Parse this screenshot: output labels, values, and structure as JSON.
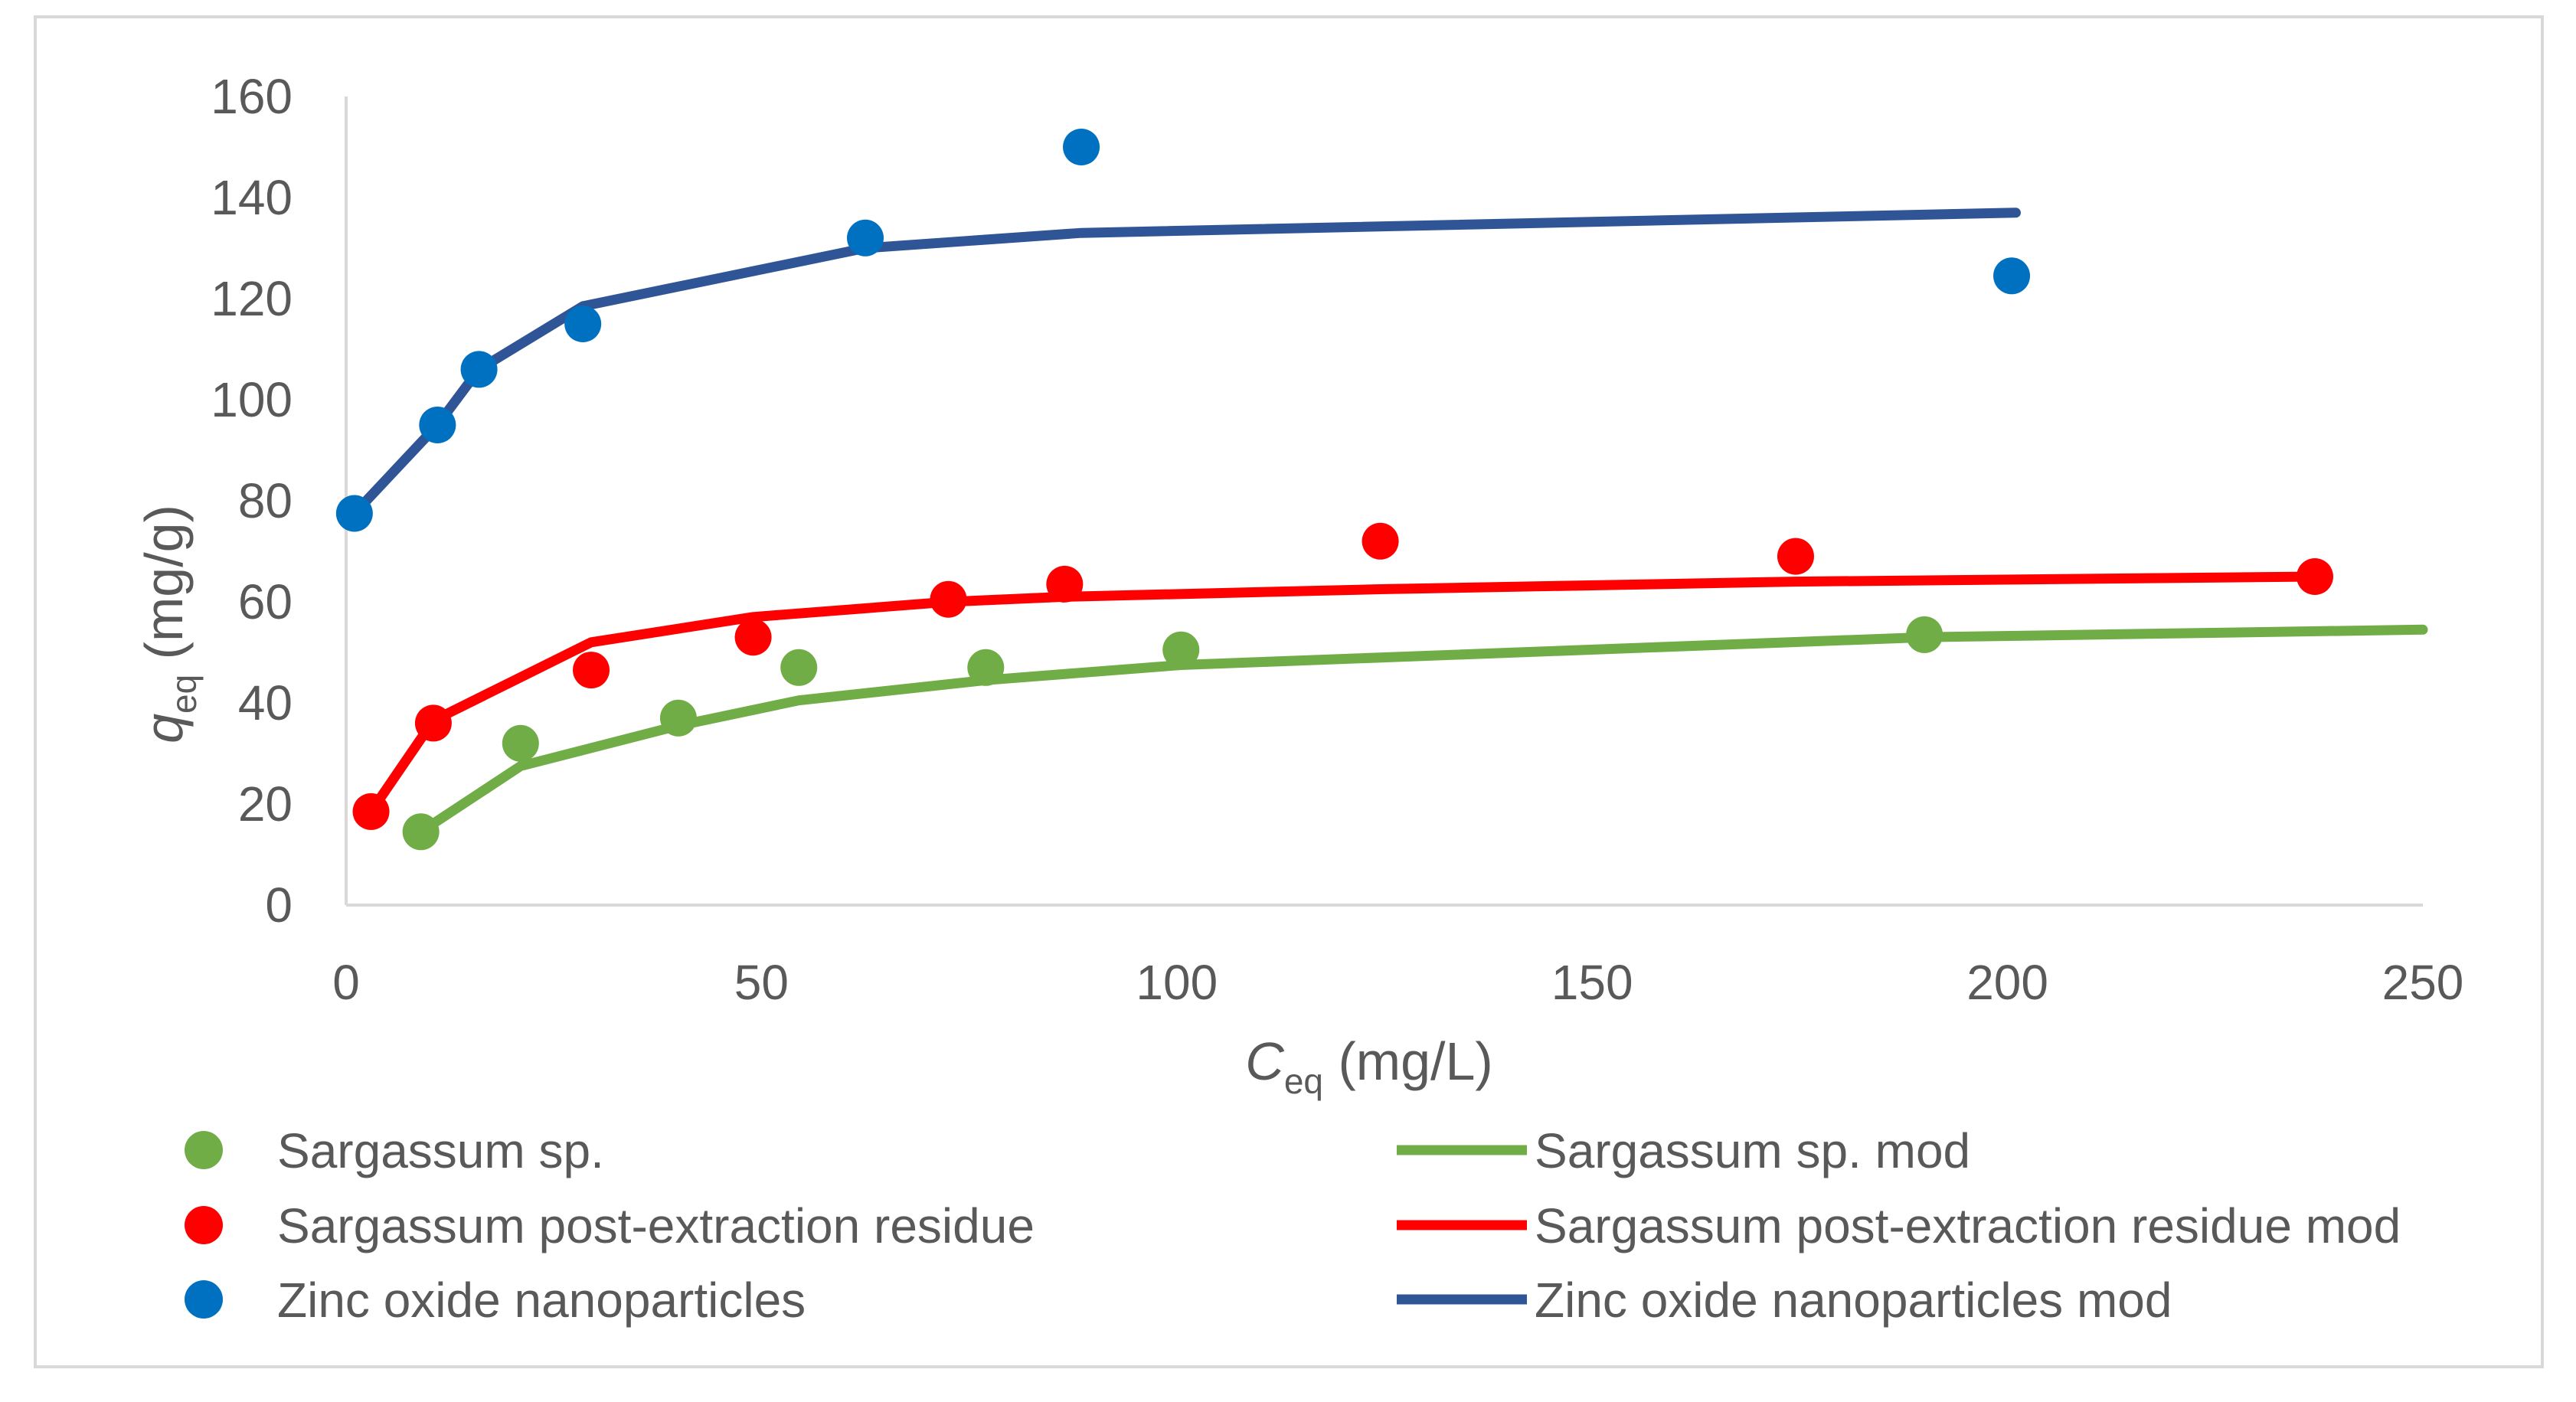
{
  "chart_data": {
    "type": "scatter",
    "title": "",
    "xlabel_main": "C",
    "xlabel_sub": "eq",
    "xlabel_unit": " (mg/L)",
    "ylabel_main": "q",
    "ylabel_sub": "eq",
    "ylabel_unit": " (mg/g)",
    "xlim": [
      0,
      250
    ],
    "ylim": [
      0,
      160
    ],
    "xticks": [
      0,
      50,
      100,
      150,
      200,
      250
    ],
    "yticks": [
      0,
      20,
      40,
      60,
      80,
      100,
      120,
      140,
      160
    ],
    "grid": false,
    "legend_position": "bottom",
    "series": [
      {
        "name": "Sargassum sp.",
        "kind": "points",
        "color": "#70ad47",
        "x": [
          9,
          21,
          40,
          54.5,
          77,
          100.5,
          190
        ],
        "y": [
          14.5,
          32,
          37,
          47,
          47,
          50.5,
          53.5
        ]
      },
      {
        "name": "Sargassum post-extraction residue",
        "kind": "points",
        "color": "#ff0000",
        "x": [
          3,
          10.5,
          29.5,
          49,
          72.5,
          86.5,
          124.5,
          174.5,
          237
        ],
        "y": [
          18.5,
          36,
          46.5,
          53,
          60.5,
          63.5,
          72,
          69,
          65
        ]
      },
      {
        "name": "Zinc oxide nanoparticles",
        "kind": "points",
        "color": "#0070c0",
        "x": [
          1,
          11,
          16,
          28.5,
          62.5,
          88.5,
          200.5
        ],
        "y": [
          77.5,
          95,
          106,
          115,
          132,
          150,
          124.5
        ]
      },
      {
        "name": "Sargassum sp. mod",
        "kind": "line",
        "color": "#70ad47",
        "x": [
          9,
          21,
          40,
          54.5,
          77,
          100.5,
          190,
          250
        ],
        "y": [
          14.5,
          27.5,
          35.5,
          40.5,
          44.5,
          47.5,
          53,
          54.5
        ]
      },
      {
        "name": "Sargassum post-extraction residue mod",
        "kind": "line",
        "color": "#ff0000",
        "x": [
          3,
          10.5,
          29.5,
          49,
          72.5,
          86.5,
          124.5,
          174.5,
          237
        ],
        "y": [
          18.5,
          36.5,
          52,
          57,
          60,
          61,
          62.5,
          64,
          65
        ]
      },
      {
        "name": "Zinc oxide nanoparticles mod",
        "kind": "line",
        "color": "#2f5597",
        "x": [
          1,
          11,
          16,
          28.5,
          62.5,
          88.5,
          201
        ],
        "y": [
          77.5,
          95,
          106,
          118.5,
          130,
          133,
          137
        ]
      }
    ]
  }
}
